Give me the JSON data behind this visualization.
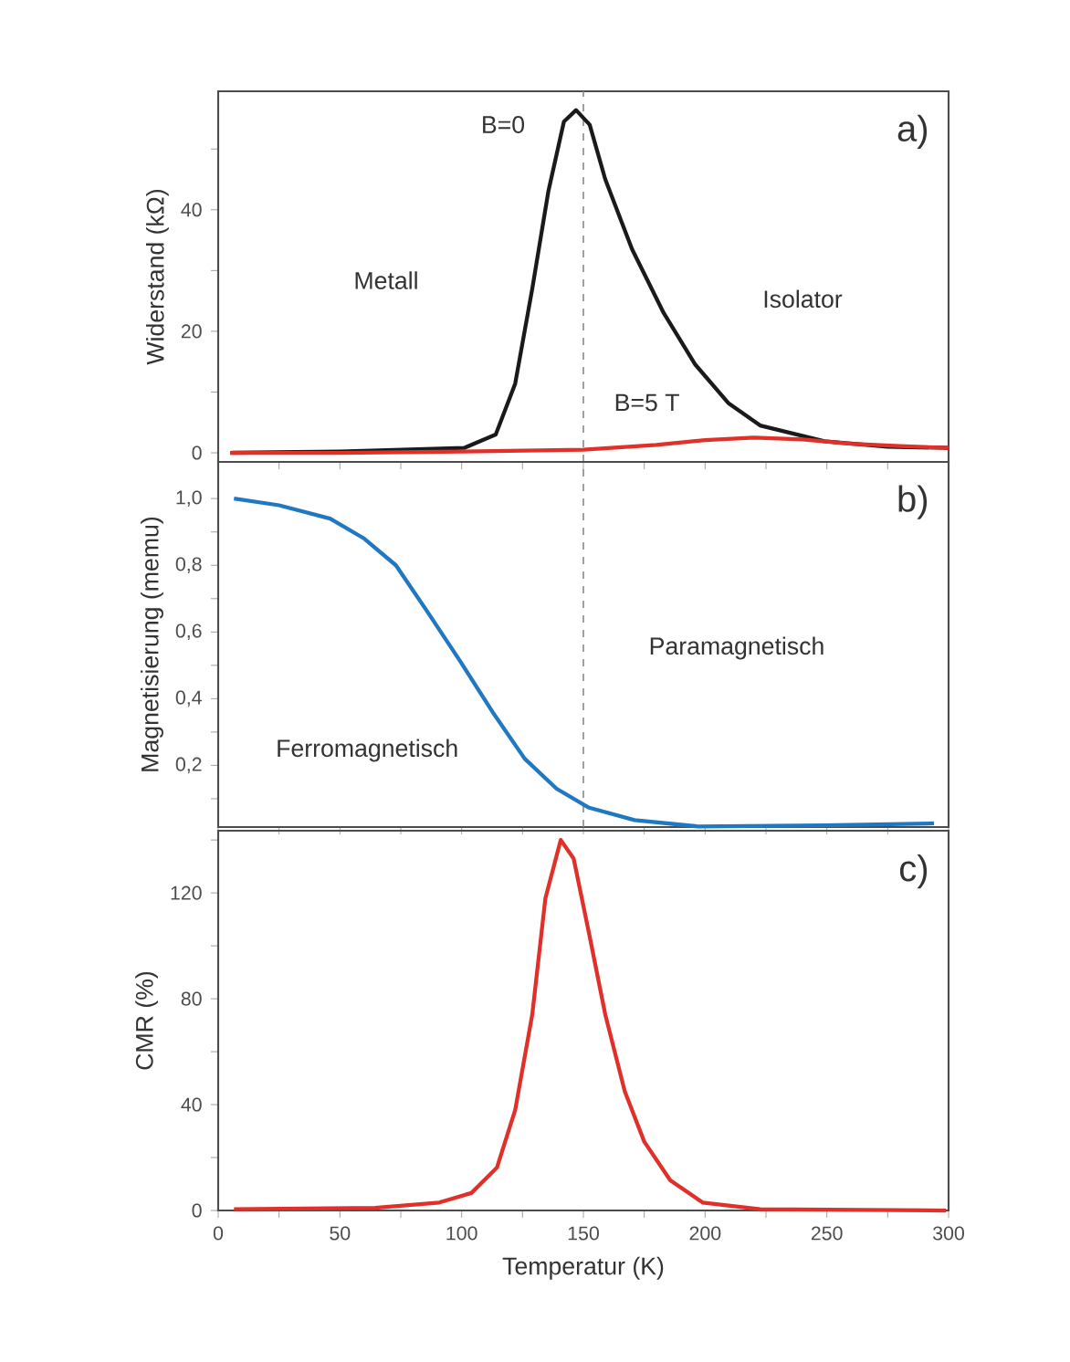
{
  "chart_data": [
    {
      "type": "line",
      "title": "a)",
      "ylabel": "Widerstand (kΩ)",
      "xlim": [
        0,
        300
      ],
      "ylim": [
        -1.5,
        59.5
      ],
      "xticks": [
        0,
        {
          "value": 25,
          "label": null
        },
        50,
        {
          "value": 75,
          "label": null
        },
        100,
        {
          "value": 125,
          "label": null
        },
        150,
        {
          "value": 175,
          "label": null
        },
        200,
        {
          "value": 225,
          "label": null
        },
        250,
        {
          "value": 275,
          "label": null
        },
        300
      ],
      "yticks": [
        0,
        {
          "value": 10,
          "label": null
        },
        20,
        {
          "value": 30,
          "label": null
        },
        40,
        {
          "value": 50,
          "label": null
        }
      ],
      "tick_labels": "y",
      "series": [
        {
          "color": "#1a1a1a",
          "x": [
            5,
            50,
            101,
            114,
            122,
            129,
            135.6,
            142,
            147,
            152.6,
            159,
            170,
            183,
            196,
            209.5,
            222.6,
            249,
            275,
            300
          ],
          "values": [
            0,
            0.2,
            0.8,
            3,
            11.4,
            27,
            43,
            54.5,
            56.4,
            54,
            45,
            33.5,
            23,
            14.5,
            8.2,
            4.5,
            1.9,
            1,
            0.8
          ]
        },
        {
          "color": "#e0302a",
          "x": [
            5,
            50,
            100,
            150,
            180,
            200,
            220,
            240,
            260,
            280,
            300
          ],
          "values": [
            0,
            0,
            0.2,
            0.5,
            1.3,
            2.1,
            2.5,
            2.2,
            1.5,
            1.1,
            0.8
          ]
        }
      ],
      "annotations": [
        "Metall",
        "Isolator",
        "B=0",
        "B=5 T"
      ],
      "ref_lines": [
        {
          "axis": "x",
          "value": 150,
          "color": "#888888",
          "line_style": "dashed"
        }
      ]
    },
    {
      "type": "line",
      "title": "b)",
      "ylabel": "Magnetisierung (memu)",
      "xlim": [
        0,
        300
      ],
      "ylim": [
        0.015,
        1.11
      ],
      "xticks": [
        0,
        {
          "value": 25,
          "label": null
        },
        50,
        {
          "value": 75,
          "label": null
        },
        100,
        {
          "value": 125,
          "label": null
        },
        150,
        {
          "value": 175,
          "label": null
        },
        200,
        {
          "value": 225,
          "label": null
        },
        250,
        {
          "value": 275,
          "label": null
        },
        300
      ],
      "yticks": [
        {
          "value": 0.1,
          "label": null
        },
        {
          "value": 0.2,
          "label": "0,2"
        },
        {
          "value": 0.3,
          "label": null
        },
        {
          "value": 0.4,
          "label": "0,4"
        },
        {
          "value": 0.5,
          "label": null
        },
        {
          "value": 0.6,
          "label": "0,6"
        },
        {
          "value": 0.7,
          "label": null
        },
        {
          "value": 0.8,
          "label": "0,8"
        },
        {
          "value": 0.9,
          "label": null
        },
        {
          "value": 1.0,
          "label": "1,0"
        }
      ],
      "tick_labels": "y",
      "series": [
        {
          "color": "#1f78c1",
          "x": [
            6.5,
            25,
            46,
            60,
            73,
            86,
            99.6,
            112.7,
            125.9,
            139,
            152,
            171,
            197,
            249,
            294
          ],
          "values": [
            1.0,
            0.98,
            0.94,
            0.88,
            0.8,
            0.66,
            0.51,
            0.36,
            0.22,
            0.13,
            0.074,
            0.036,
            0.017,
            0.02,
            0.026
          ]
        }
      ],
      "annotations": [
        "Paramagnetisch",
        "Ferromagnetisch"
      ],
      "ref_lines": [
        {
          "axis": "x",
          "value": 150,
          "color": "#888888",
          "line_style": "dashed"
        }
      ]
    },
    {
      "type": "line",
      "title": "c)",
      "xlabel": "Temperatur (K)",
      "ylabel": "CMR (%)",
      "xlim": [
        0,
        300
      ],
      "ylim": [
        0,
        143.5
      ],
      "xticks": [
        0,
        {
          "value": 25,
          "label": null
        },
        50,
        {
          "value": 75,
          "label": null
        },
        100,
        {
          "value": 125,
          "label": null
        },
        150,
        {
          "value": 175,
          "label": null
        },
        200,
        {
          "value": 225,
          "label": null
        },
        250,
        {
          "value": 275,
          "label": null
        },
        300
      ],
      "yticks": [
        0,
        {
          "value": 20,
          "label": null
        },
        40,
        {
          "value": 60,
          "label": null
        },
        80,
        {
          "value": 100,
          "label": null
        },
        120,
        {
          "value": 140,
          "label": null
        }
      ],
      "series": [
        {
          "color": "#e0302a",
          "x": [
            6.5,
            64.5,
            90.8,
            104,
            114.5,
            122,
            129,
            134.4,
            140.7,
            146,
            152.6,
            159,
            167,
            175,
            185.7,
            199,
            222.6,
            299
          ],
          "values": [
            0.5,
            1,
            3,
            6.6,
            16.2,
            38,
            74,
            118,
            140,
            133,
            103.5,
            74,
            45,
            26,
            11.4,
            3,
            0.5,
            0
          ]
        }
      ]
    }
  ]
}
